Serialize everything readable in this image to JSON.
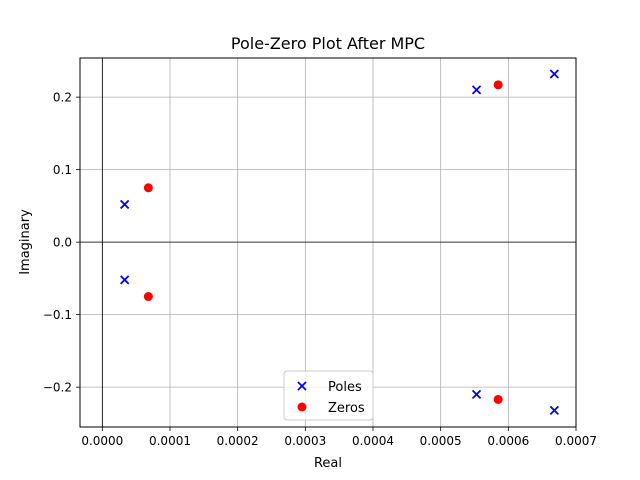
{
  "chart_data": {
    "type": "scatter",
    "title": "Pole-Zero Plot After MPC",
    "xlabel": "Real",
    "ylabel": "Imaginary",
    "xlim": [
      -3.3e-05,
      0.0007
    ],
    "ylim": [
      -0.255,
      0.254
    ],
    "x_ticks": [
      0.0,
      0.0001,
      0.0002,
      0.0003,
      0.0004,
      0.0005,
      0.0006,
      0.0007
    ],
    "x_tick_labels": [
      "0.0000",
      "0.0001",
      "0.0002",
      "0.0003",
      "0.0004",
      "0.0005",
      "0.0006",
      "0.0007"
    ],
    "y_ticks": [
      -0.2,
      -0.1,
      0.0,
      0.1,
      0.2
    ],
    "y_tick_labels": [
      "−0.2",
      "−0.1",
      "0.0",
      "0.1",
      "0.2"
    ],
    "grid": true,
    "axis_lines_at_zero": true,
    "legend_position": "lower-center",
    "series": [
      {
        "name": "Poles",
        "marker": "x",
        "color": "#0000ff",
        "points": [
          {
            "x": 3.3e-05,
            "y": 0.052
          },
          {
            "x": 3.3e-05,
            "y": -0.052
          },
          {
            "x": 0.000553,
            "y": 0.21
          },
          {
            "x": 0.000553,
            "y": -0.21
          },
          {
            "x": 0.000668,
            "y": 0.232
          },
          {
            "x": 0.000668,
            "y": -0.232
          }
        ]
      },
      {
        "name": "Zeros",
        "marker": "o",
        "color": "#ff0000",
        "points": [
          {
            "x": 6.8e-05,
            "y": 0.075
          },
          {
            "x": 6.8e-05,
            "y": -0.075
          },
          {
            "x": 0.000585,
            "y": 0.217
          },
          {
            "x": 0.000585,
            "y": -0.217
          }
        ]
      }
    ]
  }
}
